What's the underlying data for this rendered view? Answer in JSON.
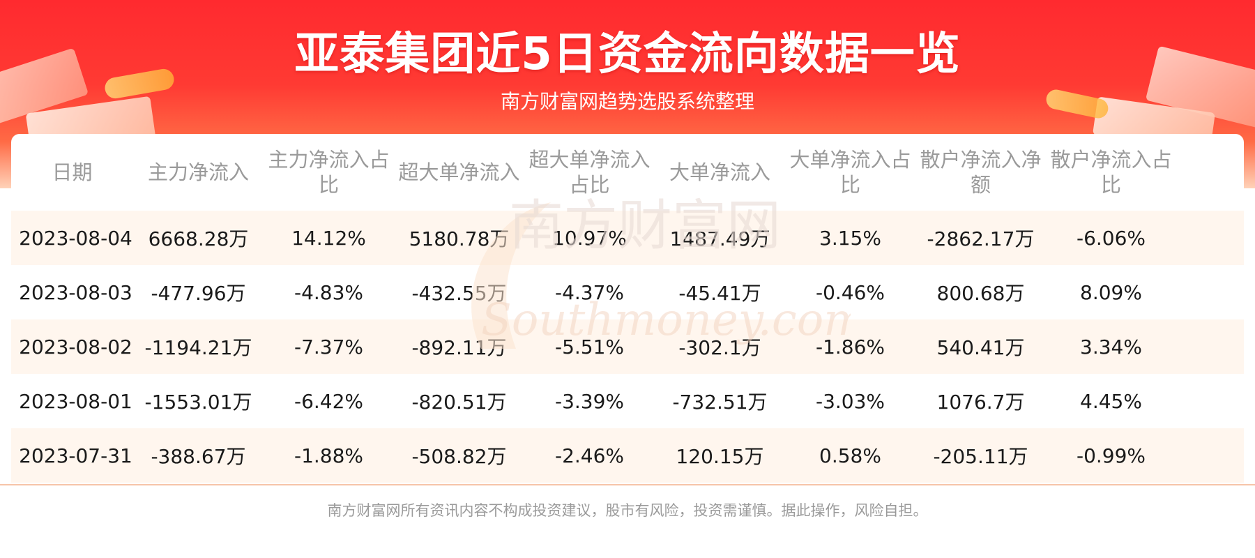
{
  "title": "亚泰集团近5日资金流向数据一览",
  "subtitle": "南方财富网趋势选股系统整理",
  "watermark": {
    "cn": "南方财富网",
    "en": "Southmoney.com"
  },
  "colors": {
    "banner": "#ff2a2f",
    "row_shade": "#fff6ee",
    "header_text": "#9a9a9a"
  },
  "table": {
    "headers": [
      "日期",
      "主力净流入",
      "主力净流入占比",
      "超大单净流入",
      "超大单净流入占比",
      "大单净流入",
      "大单净流入占比",
      "散户净流入净额",
      "散户净流入占比"
    ],
    "rows": [
      [
        "2023-08-04",
        "6668.28万",
        "14.12%",
        "5180.78万",
        "10.97%",
        "1487.49万",
        "3.15%",
        "-2862.17万",
        "-6.06%"
      ],
      [
        "2023-08-03",
        "-477.96万",
        "-4.83%",
        "-432.55万",
        "-4.37%",
        "-45.41万",
        "-0.46%",
        "800.68万",
        "8.09%"
      ],
      [
        "2023-08-02",
        "-1194.21万",
        "-7.37%",
        "-892.11万",
        "-5.51%",
        "-302.1万",
        "-1.86%",
        "540.41万",
        "3.34%"
      ],
      [
        "2023-08-01",
        "-1553.01万",
        "-6.42%",
        "-820.51万",
        "-3.39%",
        "-732.51万",
        "-3.03%",
        "1076.7万",
        "4.45%"
      ],
      [
        "2023-07-31",
        "-388.67万",
        "-1.88%",
        "-508.82万",
        "-2.46%",
        "120.15万",
        "0.58%",
        "-205.11万",
        "-0.99%"
      ]
    ]
  },
  "footer": "南方财富网所有资讯内容不构成投资建议，股市有风险，投资需谨慎。据此操作，风险自担。"
}
